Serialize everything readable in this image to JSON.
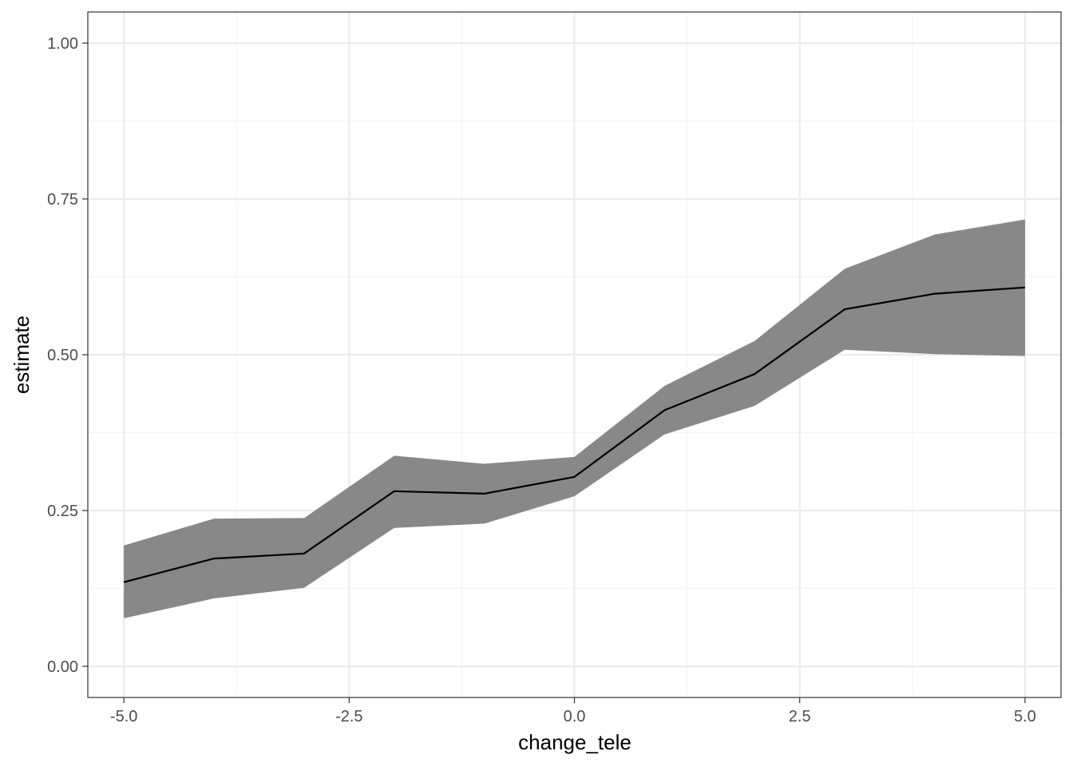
{
  "chart_data": {
    "type": "line",
    "xlabel": "change_tele",
    "ylabel": "estimate",
    "xlim": [
      -5.4,
      5.4
    ],
    "ylim": [
      -0.05,
      1.05
    ],
    "x_ticks": [
      -5.0,
      -2.5,
      0.0,
      2.5,
      5.0
    ],
    "x_tick_labels": [
      "-5.0",
      "-2.5",
      "0.0",
      "2.5",
      "5.0"
    ],
    "y_ticks": [
      0.0,
      0.25,
      0.5,
      0.75,
      1.0
    ],
    "y_tick_labels": [
      "0.00",
      "0.25",
      "0.50",
      "0.75",
      "1.00"
    ],
    "grid": true,
    "x": [
      -5,
      -4,
      -3,
      -2,
      -1,
      0,
      1,
      2,
      3,
      4,
      5
    ],
    "series": [
      {
        "estimate": [
          0.135,
          0.173,
          0.181,
          0.281,
          0.277,
          0.304,
          0.411,
          0.469,
          0.573,
          0.598,
          0.608
        ],
        "lower": [
          0.077,
          0.109,
          0.126,
          0.222,
          0.229,
          0.273,
          0.372,
          0.418,
          0.508,
          0.501,
          0.498
        ],
        "upper": [
          0.194,
          0.237,
          0.238,
          0.338,
          0.325,
          0.336,
          0.45,
          0.522,
          0.638,
          0.693,
          0.717
        ]
      }
    ],
    "colors": {
      "ribbon": "#888888",
      "line": "#000000",
      "grid_major": "#ebebeb",
      "grid_minor": "#f3f3f3",
      "panel_border": "#333333"
    }
  }
}
